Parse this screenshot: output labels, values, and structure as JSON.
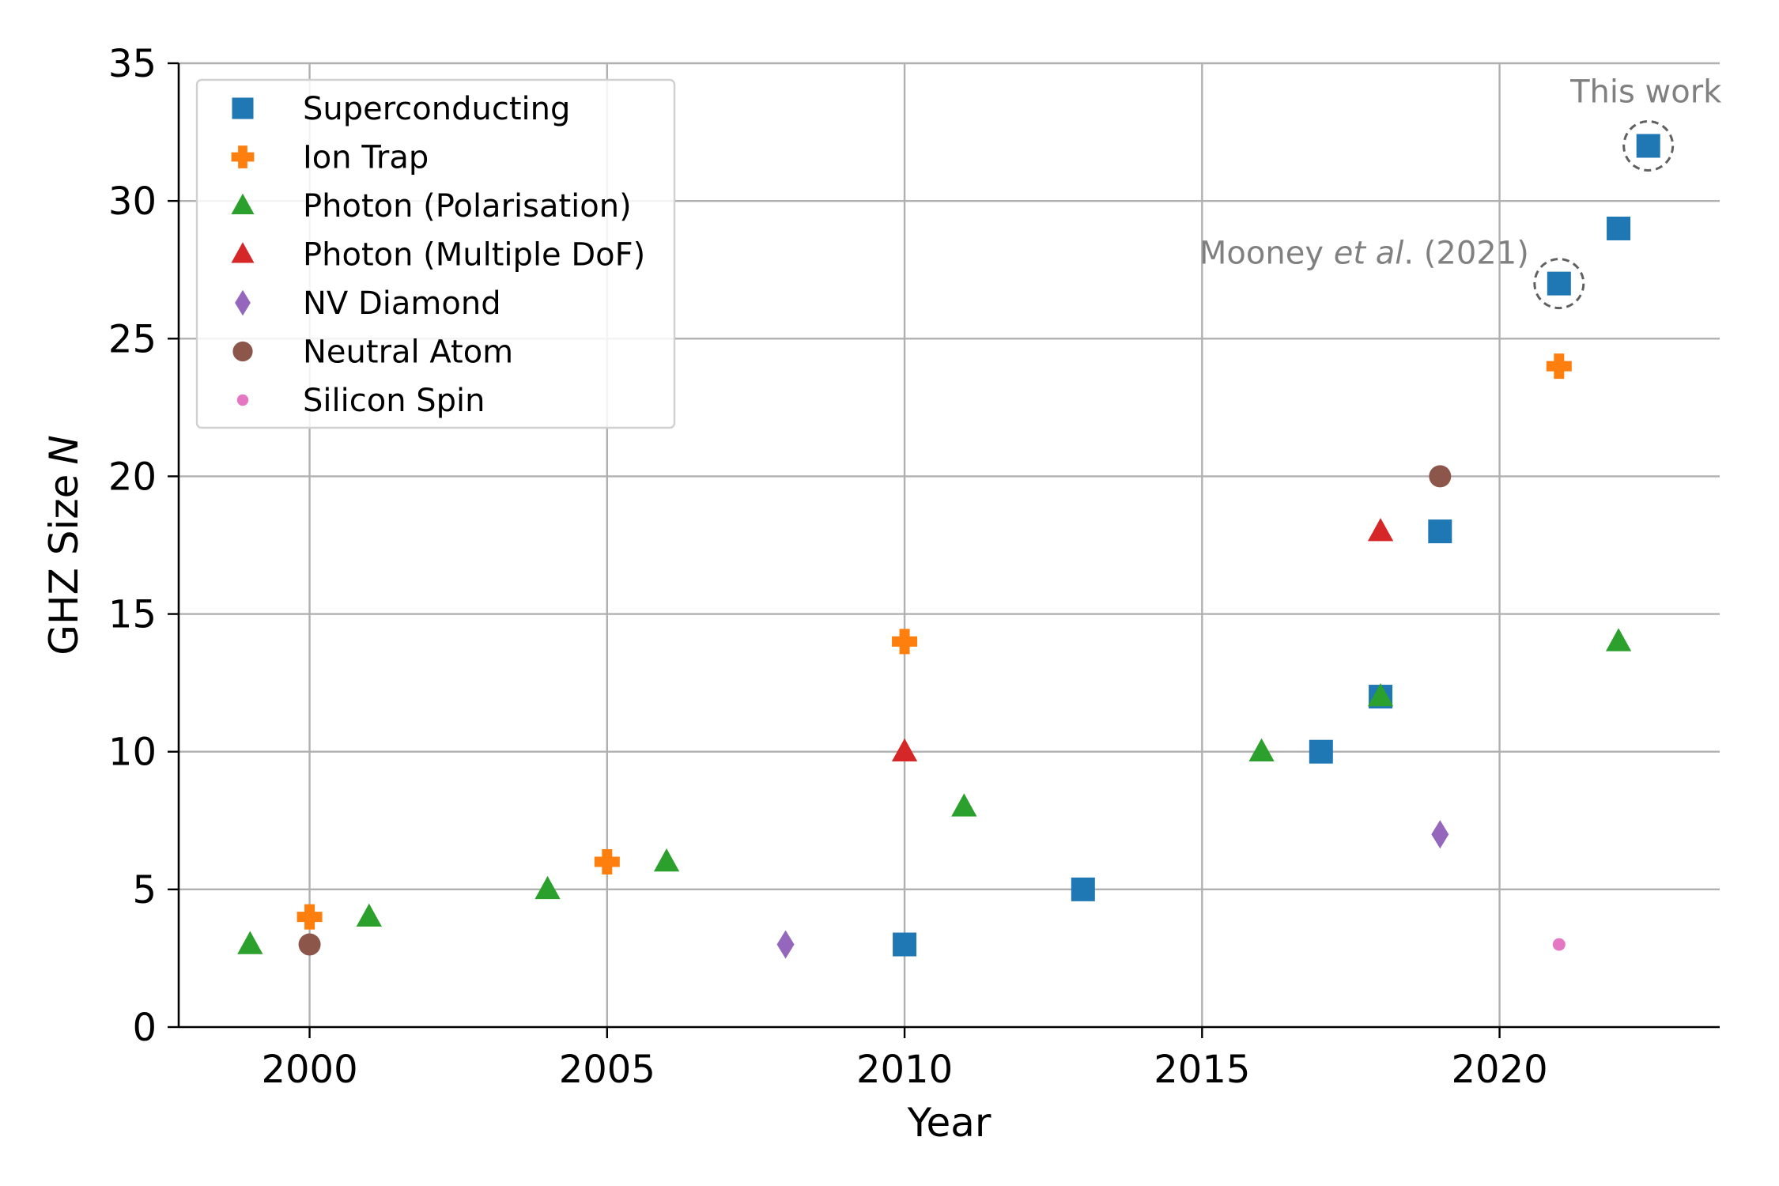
{
  "chart_data": {
    "type": "scatter",
    "title": "",
    "xlabel": "Year",
    "ylabel": "GHZ Size",
    "ylabel_var": "N",
    "xlim": [
      1997.8,
      2023.7
    ],
    "ylim": [
      0,
      35
    ],
    "xticks": [
      2000,
      2005,
      2010,
      2015,
      2020
    ],
    "yticks": [
      0,
      5,
      10,
      15,
      20,
      25,
      30,
      35
    ],
    "grid": true,
    "legend_position": "top-left",
    "series": [
      {
        "name": "Superconducting",
        "color": "#1f77b4",
        "marker": "square",
        "points": [
          [
            2010,
            3
          ],
          [
            2013,
            5
          ],
          [
            2017,
            10
          ],
          [
            2018,
            12
          ],
          [
            2019,
            18
          ],
          [
            2021,
            27
          ],
          [
            2022,
            29
          ],
          [
            2022.5,
            32
          ]
        ]
      },
      {
        "name": "Ion Trap",
        "color": "#ff7f0e",
        "marker": "plus",
        "points": [
          [
            2000,
            4
          ],
          [
            2005,
            6
          ],
          [
            2010,
            14
          ],
          [
            2021,
            24
          ]
        ]
      },
      {
        "name": "Photon (Polarisation)",
        "color": "#2ca02c",
        "marker": "triangle",
        "points": [
          [
            1999,
            3
          ],
          [
            2001,
            4
          ],
          [
            2004,
            5
          ],
          [
            2006,
            6
          ],
          [
            2011,
            8
          ],
          [
            2016,
            10
          ],
          [
            2018,
            12
          ],
          [
            2022,
            14
          ]
        ]
      },
      {
        "name": "Photon (Multiple DoF)",
        "color": "#d62728",
        "marker": "triangle",
        "points": [
          [
            2010,
            10
          ],
          [
            2018,
            18
          ]
        ]
      },
      {
        "name": "NV Diamond",
        "color": "#9467bd",
        "marker": "diamond",
        "points": [
          [
            2008,
            3
          ],
          [
            2019,
            7
          ]
        ]
      },
      {
        "name": "Neutral Atom",
        "color": "#8c564b",
        "marker": "circle",
        "points": [
          [
            2000,
            3
          ],
          [
            2019,
            20
          ]
        ]
      },
      {
        "name": "Silicon Spin",
        "color": "#e377c2",
        "marker": "dot",
        "points": [
          [
            2021,
            3
          ]
        ]
      }
    ],
    "annotations": [
      {
        "pre": "Mooney ",
        "italic": "et al",
        "post": ". (2021)",
        "x": 2021,
        "y": 27,
        "circled": true
      },
      {
        "pre": "This work",
        "italic": "",
        "post": "",
        "x": 2022.5,
        "y": 32,
        "circled": true
      }
    ]
  }
}
